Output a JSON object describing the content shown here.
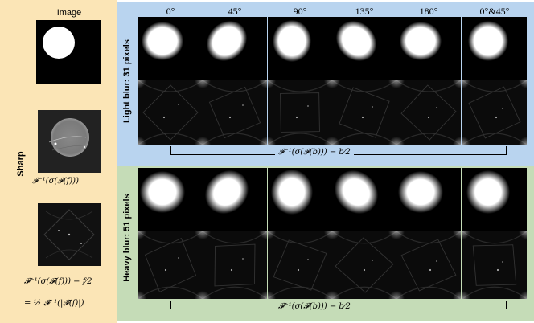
{
  "left": {
    "header": "Image",
    "row_label": "Sharp",
    "formula_1": "𝓕⁻¹(σ(𝓕(f)))",
    "formula_2a": "𝓕⁻¹(σ(𝓕(f))) − f⁄2",
    "formula_2b": "= ½ 𝓕⁻¹(|𝓕(f)|)"
  },
  "columns": [
    "0°",
    "45°",
    "90°",
    "135°",
    "180°",
    "0°&45°"
  ],
  "light": {
    "label": "Light blur: 31 pixels",
    "formula": "𝓕⁻¹(σ(𝓕(b))) − b⁄2"
  },
  "heavy": {
    "label": "Heavy blur: 51 pixels",
    "formula": "𝓕⁻¹(σ(𝓕(b))) − b⁄2"
  }
}
